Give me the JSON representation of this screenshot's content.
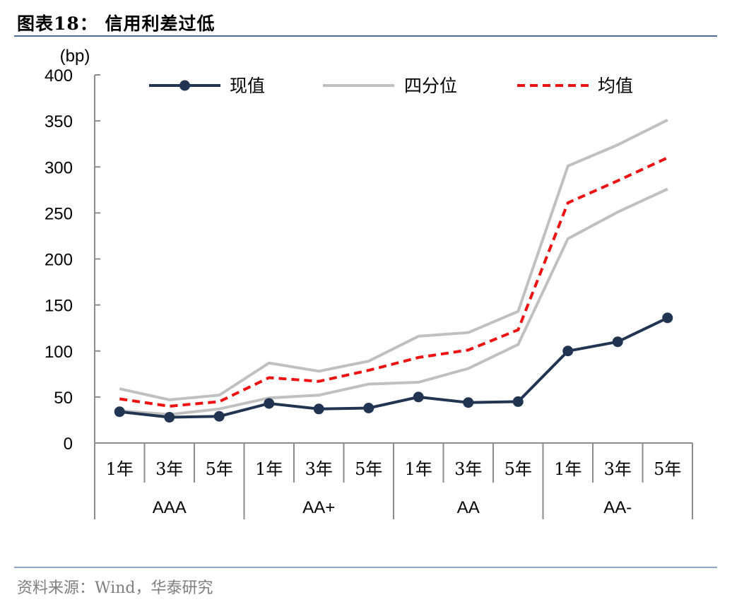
{
  "title": "图表18： 信用利差过低",
  "source": "资料来源：Wind，华泰研究",
  "chart_data": {
    "type": "line",
    "unit_label": "(bp)",
    "ylim": [
      0,
      400
    ],
    "yticks": [
      "0",
      "50",
      "100",
      "150",
      "200",
      "250",
      "300",
      "350",
      "400"
    ],
    "tenors": [
      "1年",
      "3年",
      "5年",
      "1年",
      "3年",
      "5年",
      "1年",
      "3年",
      "5年",
      "1年",
      "3年",
      "5年"
    ],
    "groups": [
      "AAA",
      "AA+",
      "AA",
      "AA-"
    ],
    "legend_placement": "top",
    "series": [
      {
        "name": "现值",
        "color": "#213553",
        "style": "solid-marker",
        "values": [
          34,
          28,
          29,
          43,
          37,
          38,
          50,
          44,
          45,
          100,
          110,
          136
        ]
      },
      {
        "name": "四分位",
        "color": "#c0c0c0",
        "style": "solid",
        "upper": [
          59,
          47,
          52,
          87,
          78,
          89,
          116,
          120,
          143,
          301,
          324,
          351
        ],
        "lower": [
          35,
          31,
          37,
          49,
          52,
          64,
          66,
          81,
          107,
          222,
          251,
          276
        ]
      },
      {
        "name": "均值",
        "color": "#ee1111",
        "style": "dashed",
        "values": [
          48,
          40,
          45,
          71,
          67,
          79,
          93,
          101,
          123,
          261,
          285,
          310
        ]
      }
    ]
  }
}
